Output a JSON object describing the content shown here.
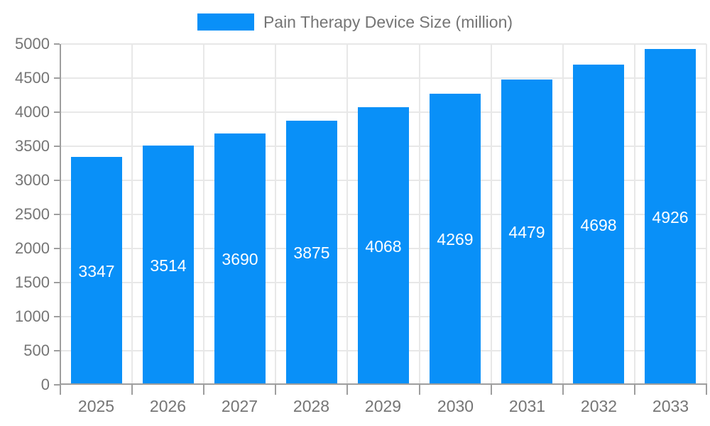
{
  "chart_data": {
    "type": "bar",
    "title": "",
    "legend": {
      "label": "Pain Therapy Device Size (million)",
      "position": "top"
    },
    "categories": [
      "2025",
      "2026",
      "2027",
      "2028",
      "2029",
      "2030",
      "2031",
      "2032",
      "2033"
    ],
    "series": [
      {
        "name": "Pain Therapy Device Size (million)",
        "values": [
          3347,
          3514,
          3690,
          3875,
          4068,
          4269,
          4479,
          4698,
          4926
        ]
      }
    ],
    "bar_value_labels": [
      "3347",
      "3514",
      "3690",
      "3875",
      "4068",
      "4269",
      "4479",
      "4698",
      "4926"
    ],
    "ytick_labels": [
      "0",
      "500",
      "1000",
      "1500",
      "2000",
      "2500",
      "3000",
      "3500",
      "4000",
      "4500",
      "5000"
    ],
    "ylim": [
      0,
      5000
    ],
    "ytick_step": 500,
    "xlabel": "",
    "ylabel": "",
    "grid": true,
    "colors": {
      "bar": "#0990f8",
      "grid": "#e8e8e8",
      "axis": "#9e9e9e",
      "tick_text": "#757575",
      "bar_value_text": "#ffffff",
      "background": "#ffffff"
    }
  }
}
